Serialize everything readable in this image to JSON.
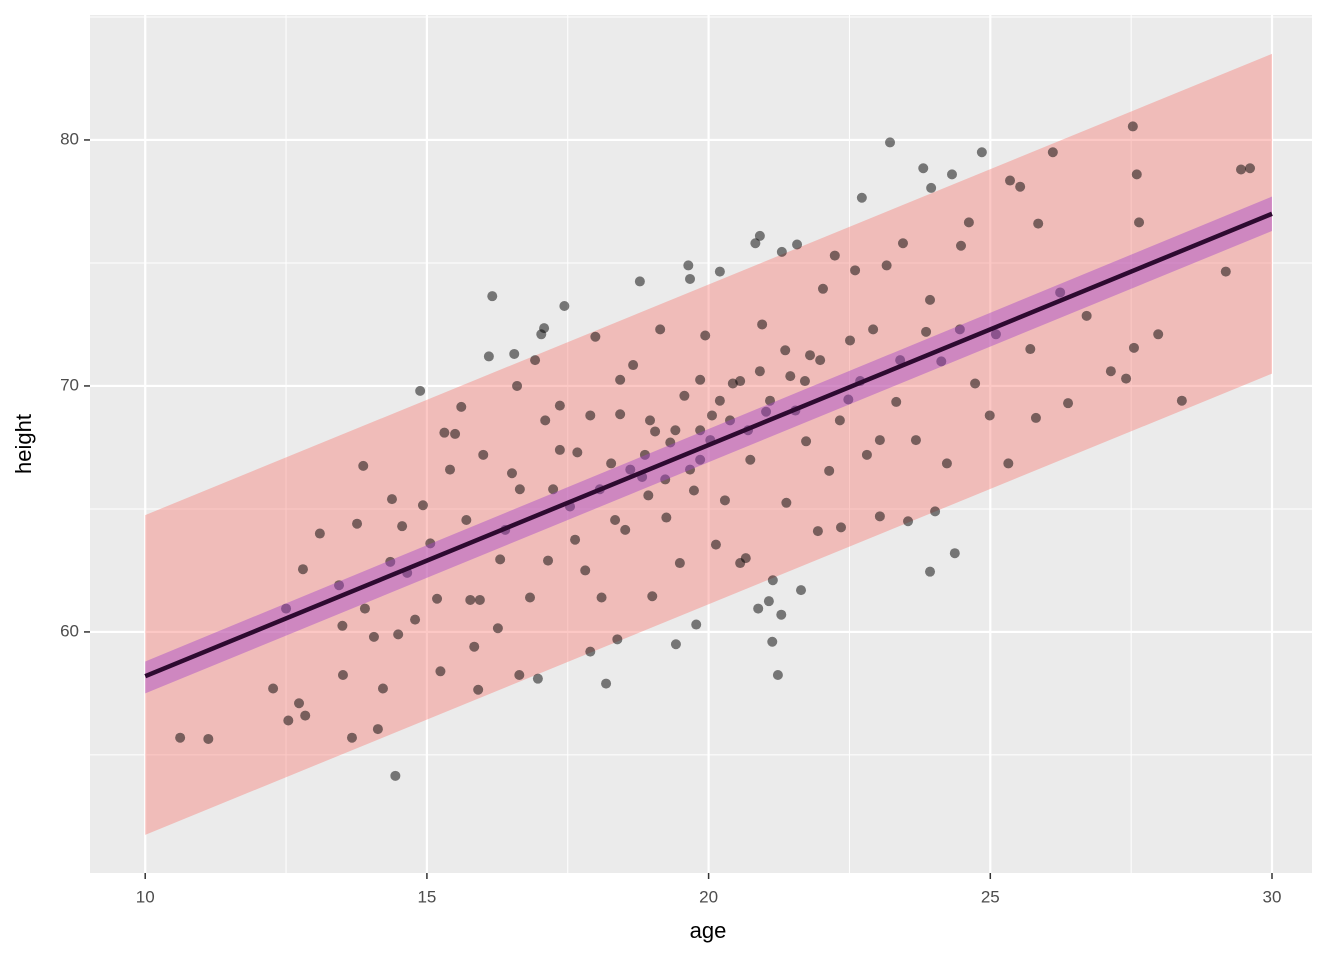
{
  "chart_data": {
    "type": "scatter",
    "x_label": "age",
    "y_label": "height",
    "xlim": [
      9.02,
      30.71
    ],
    "ylim": [
      50.2,
      85.08
    ],
    "xticks": [
      10,
      15,
      20,
      25,
      30
    ],
    "yticks": [
      60,
      70,
      80
    ],
    "minor_xticks": [
      12.5,
      17.5,
      22.5,
      27.5
    ],
    "minor_yticks": [
      55,
      65,
      75,
      85
    ],
    "grid": true,
    "panel_color": "#ebebeb",
    "prediction_band": {
      "x": [
        10,
        30
      ],
      "lower": [
        51.75,
        70.5
      ],
      "upper": [
        64.75,
        83.5
      ],
      "color": "#f8766d",
      "opacity": 0.4
    },
    "confidence_band": {
      "x": [
        10,
        30
      ],
      "lower": [
        57.5,
        76.3
      ],
      "upper": [
        58.8,
        77.7
      ],
      "color": "#a346c9",
      "opacity": 0.45
    },
    "fit": {
      "x": [
        10,
        30
      ],
      "y": [
        58.2,
        77.0
      ],
      "color": "#2d0a30"
    },
    "points": {
      "color": "#000000",
      "opacity": 0.5,
      "x": [
        10.62,
        11.12,
        12.27,
        12.54,
        12.5,
        12.8,
        12.73,
        12.84,
        13.1,
        13.44,
        13.5,
        13.51,
        13.67,
        13.76,
        13.87,
        13.9,
        14.06,
        14.13,
        14.22,
        14.35,
        14.38,
        14.44,
        14.49,
        14.56,
        14.65,
        14.79,
        14.88,
        14.93,
        15.06,
        15.18,
        15.24,
        15.31,
        15.41,
        15.5,
        15.61,
        15.7,
        15.77,
        15.84,
        15.91,
        16.0,
        16.1,
        16.16,
        16.26,
        16.39,
        16.51,
        16.55,
        16.6,
        16.64,
        16.83,
        16.92,
        16.97,
        17.03,
        17.08,
        17.15,
        17.24,
        17.36,
        17.44,
        17.54,
        17.67,
        17.81,
        17.9,
        17.99,
        18.1,
        18.18,
        18.27,
        18.38,
        18.43,
        18.52,
        18.66,
        18.78,
        18.82,
        18.93,
        19.0,
        19.05,
        19.14,
        19.25,
        19.32,
        19.42,
        19.49,
        19.57,
        19.64,
        19.67,
        19.74,
        19.78,
        19.85,
        19.94,
        20.06,
        20.13,
        20.2,
        20.29,
        20.43,
        20.56,
        20.66,
        20.74,
        20.83,
        20.88,
        20.91,
        20.95,
        21.02,
        21.07,
        21.13,
        21.14,
        21.23,
        21.29,
        21.3,
        21.38,
        21.45,
        21.57,
        21.64,
        21.73,
        21.8,
        21.94,
        22.03,
        22.14,
        22.24,
        22.35,
        22.48,
        22.6,
        22.72,
        22.81,
        22.92,
        23.04,
        23.16,
        23.22,
        23.33,
        23.45,
        23.54,
        23.68,
        23.81,
        23.86,
        23.93,
        23.95,
        24.02,
        24.13,
        24.23,
        24.32,
        24.37,
        24.48,
        24.62,
        24.73,
        24.85,
        24.99,
        25.1,
        25.32,
        25.35,
        25.53,
        25.71,
        25.81,
        25.85,
        26.11,
        26.24,
        26.38,
        26.71,
        27.14,
        27.41,
        27.53,
        27.6,
        27.55,
        27.64,
        27.98,
        28.4,
        29.18,
        29.45,
        29.61,
        17.63,
        18.07,
        18.34,
        18.61,
        18.87,
        18.96,
        19.23,
        19.41,
        19.67,
        19.85,
        20.03,
        20.2,
        20.38,
        20.56,
        20.7,
        20.91,
        21.09,
        21.36,
        21.54,
        21.71,
        21.98,
        22.33,
        22.51,
        22.69,
        17.1,
        17.36,
        16.65,
        16.3,
        15.94,
        17.9,
        18.43,
        19.85,
        23.04,
        23.4,
        23.93,
        24.46
      ],
      "y": [
        55.7,
        55.65,
        57.7,
        56.4,
        60.95,
        62.55,
        57.1,
        56.6,
        64.0,
        61.9,
        60.25,
        58.25,
        55.7,
        64.4,
        66.75,
        60.95,
        59.8,
        56.05,
        57.7,
        62.85,
        65.4,
        54.15,
        59.9,
        64.3,
        62.4,
        60.5,
        69.8,
        65.15,
        63.6,
        61.35,
        58.4,
        68.1,
        66.6,
        68.05,
        69.15,
        64.55,
        61.3,
        59.4,
        57.65,
        67.2,
        71.2,
        73.65,
        60.15,
        64.15,
        66.45,
        71.3,
        70.0,
        58.25,
        61.4,
        71.05,
        58.1,
        72.1,
        72.35,
        62.9,
        65.8,
        69.2,
        73.25,
        65.1,
        67.3,
        62.5,
        59.2,
        72.0,
        61.4,
        57.9,
        66.85,
        59.7,
        68.85,
        64.15,
        70.85,
        74.25,
        66.3,
        65.55,
        61.45,
        68.15,
        72.3,
        64.65,
        67.7,
        59.5,
        62.8,
        69.6,
        74.9,
        74.35,
        65.75,
        60.3,
        67.0,
        72.05,
        68.8,
        63.55,
        74.65,
        65.35,
        70.1,
        62.8,
        63.0,
        67.0,
        75.8,
        60.95,
        76.1,
        72.5,
        68.95,
        61.25,
        59.6,
        62.1,
        58.25,
        60.7,
        75.45,
        65.25,
        70.4,
        75.75,
        61.7,
        67.75,
        71.25,
        64.1,
        73.95,
        66.55,
        75.3,
        64.25,
        69.45,
        74.7,
        77.65,
        67.2,
        72.3,
        64.7,
        74.9,
        79.9,
        69.35,
        75.8,
        64.5,
        67.8,
        78.85,
        72.2,
        62.45,
        78.05,
        64.9,
        71.0,
        66.85,
        78.6,
        63.2,
        75.7,
        76.65,
        70.1,
        79.5,
        68.8,
        72.1,
        66.85,
        78.35,
        78.1,
        71.5,
        68.7,
        76.6,
        79.5,
        73.8,
        69.3,
        72.85,
        70.6,
        70.3,
        80.55,
        78.6,
        71.55,
        76.65,
        72.1,
        69.4,
        74.65,
        78.8,
        78.85,
        63.75,
        65.8,
        64.55,
        66.6,
        67.2,
        68.6,
        66.2,
        68.2,
        66.6,
        68.2,
        67.8,
        69.4,
        68.6,
        70.2,
        68.2,
        70.6,
        69.4,
        71.45,
        69.0,
        70.2,
        71.05,
        68.6,
        71.85,
        70.2,
        68.6,
        67.4,
        65.8,
        62.95,
        61.3,
        68.8,
        70.25,
        70.25,
        67.8,
        71.05,
        73.5,
        72.3
      ]
    }
  }
}
